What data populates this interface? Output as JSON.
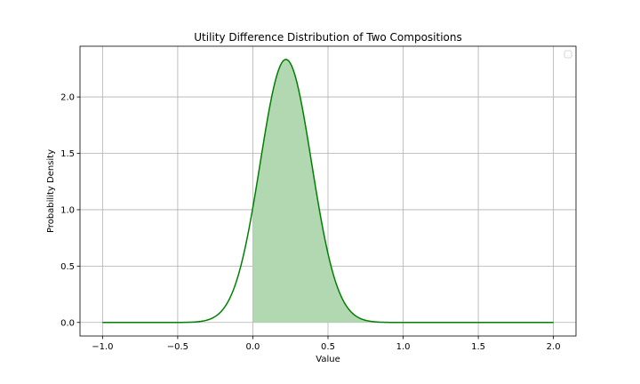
{
  "chart_data": {
    "type": "area",
    "title": "Utility Difference Distribution of Two Compositions",
    "xlabel": "Value",
    "ylabel": "Probability Density",
    "xlim": [
      -1.15,
      2.15
    ],
    "ylim": [
      -0.12,
      2.45
    ],
    "xticks": [
      -1.0,
      -0.5,
      0.0,
      0.5,
      1.0,
      1.5,
      2.0
    ],
    "xtick_labels": [
      "−1.0",
      "−0.5",
      "0.0",
      "0.5",
      "1.0",
      "1.5",
      "2.0"
    ],
    "yticks": [
      0.0,
      0.5,
      1.0,
      1.5,
      2.0
    ],
    "ytick_labels": [
      "0.0",
      "0.5",
      "1.0",
      "1.5",
      "2.0"
    ],
    "grid": true,
    "legend": "top-right (empty)",
    "series": [
      {
        "distribution": "normal",
        "mean": 0.22,
        "std": 0.171,
        "x_range": [
          -1.0,
          2.0
        ],
        "line_color": "#008000",
        "fill_color": "#b2d8b2",
        "fill_from_x": 0.0
      }
    ],
    "peak": {
      "x": 0.22,
      "y": 2.33
    }
  }
}
